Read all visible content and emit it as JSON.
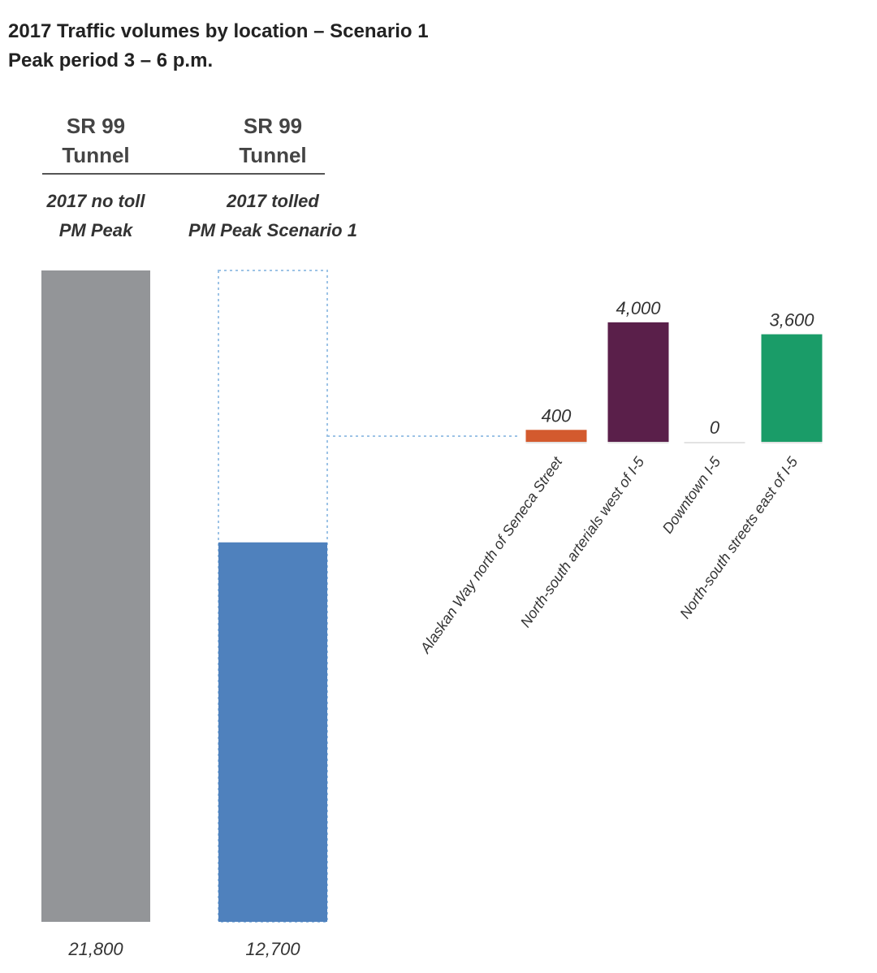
{
  "title": "2017 Traffic volumes by location – Scenario 1",
  "subtitle": "Peak period 3 – 6 p.m.",
  "chart_data": [
    {
      "type": "bar",
      "headers": [
        [
          "SR 99",
          "Tunnel"
        ],
        [
          "SR 99",
          "Tunnel"
        ]
      ],
      "categories": [
        [
          "2017 no toll",
          "PM Peak"
        ],
        [
          "2017 tolled",
          "PM Peak Scenario 1"
        ]
      ],
      "values": [
        21800,
        12700
      ],
      "value_labels": [
        "21,800",
        "12,700"
      ],
      "colors": [
        "#939598",
        "#4f81bd"
      ]
    },
    {
      "type": "bar",
      "categories": [
        "Alaskan Way north of Seneca Street",
        "North-south arterials west of I-5",
        "Downtown I-5",
        "North-south streets east of I-5"
      ],
      "values": [
        400,
        4000,
        0,
        3600
      ],
      "value_labels": [
        "400",
        "4,000",
        "0",
        "3,600"
      ],
      "colors": [
        "#d35a2e",
        "#5a1f4a",
        "#d9d9d9",
        "#1a9c68"
      ]
    }
  ]
}
